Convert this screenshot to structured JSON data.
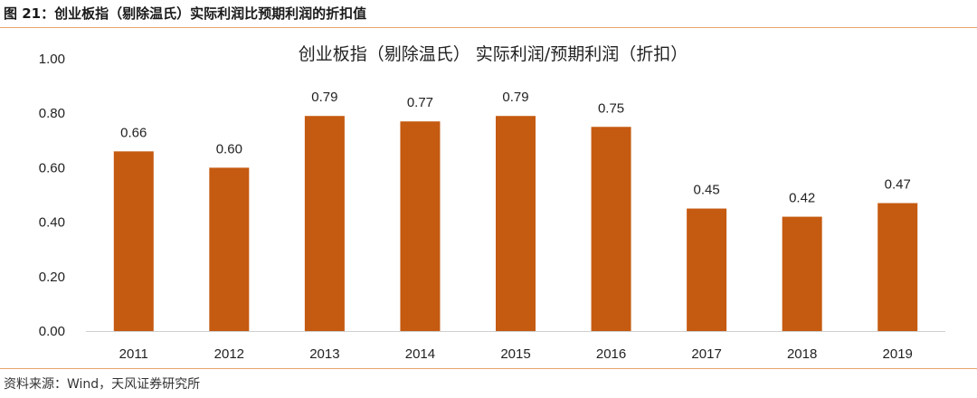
{
  "caption": "图 21：创业板指（剔除温氏）实际利润比预期利润的折扣值",
  "source": "资料来源：Wind，天风证券研究所",
  "chart_data": {
    "type": "bar",
    "title": "创业板指（剔除温氏）   实际利润/预期利润（折扣）",
    "categories": [
      "2011",
      "2012",
      "2013",
      "2014",
      "2015",
      "2016",
      "2017",
      "2018",
      "2019"
    ],
    "values": [
      0.66,
      0.6,
      0.79,
      0.77,
      0.79,
      0.75,
      0.45,
      0.42,
      0.47
    ],
    "data_labels": [
      "0.66",
      "0.60",
      "0.79",
      "0.77",
      "0.79",
      "0.75",
      "0.45",
      "0.42",
      "0.47"
    ],
    "yticks": [
      "0.00",
      "0.20",
      "0.40",
      "0.60",
      "0.80",
      "1.00"
    ],
    "ylim": [
      0,
      1.0
    ],
    "xlabel": "",
    "ylabel": "",
    "grid": false,
    "bar_color": "#c55a11",
    "accent_color": "#e9a46d"
  }
}
